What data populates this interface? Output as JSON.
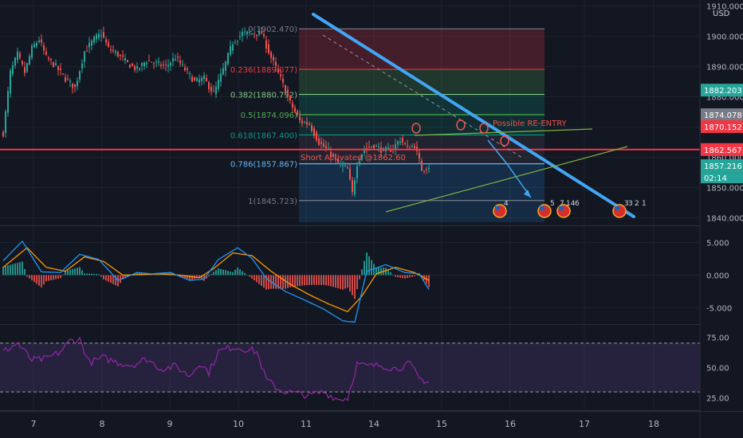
{
  "chart_data": [
    {
      "type": "candlestick",
      "name": "price",
      "currency": "USD",
      "ylim": [
        1837.5,
        1912
      ],
      "y_ticks": [
        1840,
        1850,
        1860,
        1870,
        1880,
        1890,
        1900,
        1910
      ],
      "y_tick_labels": [
        "1840.000",
        "1850.000",
        "1860.000",
        "1870.000",
        "1880.000",
        "1890.000",
        "1900.000",
        "1910.000"
      ],
      "x_tick_labels": [
        "7",
        "8",
        "9",
        "10",
        "11",
        "14",
        "15",
        "16",
        "17",
        "18"
      ],
      "ohlc_keypoints": [
        {
          "i": 0,
          "v": 1868
        },
        {
          "i": 3,
          "v": 1888
        },
        {
          "i": 6,
          "v": 1894
        },
        {
          "i": 9,
          "v": 1888
        },
        {
          "i": 12,
          "v": 1896
        },
        {
          "i": 15,
          "v": 1899
        },
        {
          "i": 18,
          "v": 1893
        },
        {
          "i": 22,
          "v": 1890
        },
        {
          "i": 26,
          "v": 1886
        },
        {
          "i": 30,
          "v": 1883
        },
        {
          "i": 34,
          "v": 1895
        },
        {
          "i": 38,
          "v": 1899
        },
        {
          "i": 41,
          "v": 1901
        },
        {
          "i": 44,
          "v": 1896
        },
        {
          "i": 48,
          "v": 1894
        },
        {
          "i": 52,
          "v": 1891
        },
        {
          "i": 56,
          "v": 1889
        },
        {
          "i": 60,
          "v": 1892
        },
        {
          "i": 64,
          "v": 1891
        },
        {
          "i": 68,
          "v": 1890
        },
        {
          "i": 72,
          "v": 1893
        },
        {
          "i": 76,
          "v": 1889
        },
        {
          "i": 80,
          "v": 1885
        },
        {
          "i": 84,
          "v": 1886
        },
        {
          "i": 88,
          "v": 1881
        },
        {
          "i": 92,
          "v": 1889
        },
        {
          "i": 96,
          "v": 1898
        },
        {
          "i": 100,
          "v": 1901
        },
        {
          "i": 104,
          "v": 1901
        },
        {
          "i": 108,
          "v": 1901
        },
        {
          "i": 112,
          "v": 1893
        },
        {
          "i": 116,
          "v": 1886
        },
        {
          "i": 120,
          "v": 1878
        },
        {
          "i": 124,
          "v": 1872
        },
        {
          "i": 128,
          "v": 1871
        },
        {
          "i": 132,
          "v": 1865
        },
        {
          "i": 136,
          "v": 1862
        },
        {
          "i": 140,
          "v": 1858
        },
        {
          "i": 144,
          "v": 1856
        },
        {
          "i": 146,
          "v": 1848
        },
        {
          "i": 148,
          "v": 1858
        },
        {
          "i": 151,
          "v": 1863
        },
        {
          "i": 155,
          "v": 1864
        },
        {
          "i": 159,
          "v": 1862
        },
        {
          "i": 163,
          "v": 1863
        },
        {
          "i": 166,
          "v": 1866
        },
        {
          "i": 169,
          "v": 1863
        },
        {
          "i": 172,
          "v": 1864
        },
        {
          "i": 175,
          "v": 1856
        },
        {
          "i": 178,
          "v": 1857
        }
      ],
      "current_price": "1857.216",
      "countdown": "02:14",
      "price_labels": [
        {
          "text": "1882.203",
          "value": 1882.203,
          "color": "#26a69a"
        },
        {
          "text": "1874.078",
          "value": 1874.078,
          "color": "#787b86"
        },
        {
          "text": "1870.152",
          "value": 1870.152,
          "color": "#f23645"
        },
        {
          "text": "1862.567",
          "value": 1862.567,
          "color": "#f23645"
        },
        {
          "text": "1857.216",
          "value": 1857.216,
          "color": "#26a69a"
        }
      ],
      "fibonacci": [
        {
          "level": "0",
          "price": 1902.47,
          "label": "0(1902.470)",
          "color": "#787b86"
        },
        {
          "level": "0.236",
          "price": 1889.077,
          "label": "0.236(1889.077)",
          "color": "#f23645"
        },
        {
          "level": "0.382",
          "price": 1880.792,
          "label": "0.382(1880.792)",
          "color": "#81c784"
        },
        {
          "level": "0.5",
          "price": 1874.096,
          "label": "0.5(1874.096)",
          "color": "#4caf50"
        },
        {
          "level": "0.618",
          "price": 1867.4,
          "label": "0.618(1867.400)",
          "color": "#089981"
        },
        {
          "level": "0.786",
          "price": 1857.867,
          "label": "0.786(1857.867)",
          "color": "#64b5f6"
        },
        {
          "level": "1",
          "price": 1845.723,
          "label": "1(1845.723)",
          "color": "#787b86"
        }
      ],
      "annotations": {
        "short_activated": "Short Activated @1862.60",
        "reentry": "Possible RE-ENTRY"
      },
      "event_badges": [
        "4",
        "5",
        "7",
        "14",
        "6",
        "3",
        "3",
        "2",
        "1"
      ],
      "colors": {
        "up": "#26a69a",
        "down": "#ef5350",
        "trendline": "#2196f3",
        "horizontal": "#f23645"
      }
    },
    {
      "type": "line",
      "name": "macd",
      "ylim": [
        -7.5,
        7.5
      ],
      "y_ticks": [
        5,
        0,
        -5
      ],
      "y_tick_labels": [
        "5.000",
        "0.000",
        "-5.000"
      ],
      "macd_keypoints": [
        {
          "i": 0,
          "v": 2.2
        },
        {
          "i": 8,
          "v": 5.2
        },
        {
          "i": 16,
          "v": 0.5
        },
        {
          "i": 24,
          "v": 0.4
        },
        {
          "i": 32,
          "v": 3.2
        },
        {
          "i": 40,
          "v": 2.4
        },
        {
          "i": 48,
          "v": -0.8
        },
        {
          "i": 56,
          "v": 0.4
        },
        {
          "i": 62,
          "v": 0.2
        },
        {
          "i": 70,
          "v": 0.4
        },
        {
          "i": 78,
          "v": -0.8
        },
        {
          "i": 84,
          "v": -0.6
        },
        {
          "i": 90,
          "v": 2.4
        },
        {
          "i": 98,
          "v": 4.2
        },
        {
          "i": 104,
          "v": 2.6
        },
        {
          "i": 110,
          "v": -0.5
        },
        {
          "i": 118,
          "v": -2.5
        },
        {
          "i": 126,
          "v": -3.8
        },
        {
          "i": 134,
          "v": -5.2
        },
        {
          "i": 142,
          "v": -7.0
        },
        {
          "i": 147,
          "v": -7.2
        },
        {
          "i": 152,
          "v": 0.6
        },
        {
          "i": 160,
          "v": 1.6
        },
        {
          "i": 168,
          "v": 0.4
        },
        {
          "i": 174,
          "v": 0.2
        },
        {
          "i": 178,
          "v": -2.2
        }
      ],
      "signal_keypoints": [
        {
          "i": 0,
          "v": 1.2
        },
        {
          "i": 10,
          "v": 4.2
        },
        {
          "i": 18,
          "v": 1.2
        },
        {
          "i": 26,
          "v": 0.6
        },
        {
          "i": 34,
          "v": 2.8
        },
        {
          "i": 42,
          "v": 2.1
        },
        {
          "i": 50,
          "v": 0.0
        },
        {
          "i": 58,
          "v": 0.1
        },
        {
          "i": 66,
          "v": 0.2
        },
        {
          "i": 74,
          "v": 0.0
        },
        {
          "i": 82,
          "v": -0.4
        },
        {
          "i": 88,
          "v": 1.0
        },
        {
          "i": 96,
          "v": 3.4
        },
        {
          "i": 104,
          "v": 3.0
        },
        {
          "i": 112,
          "v": 0.6
        },
        {
          "i": 120,
          "v": -1.4
        },
        {
          "i": 128,
          "v": -3.0
        },
        {
          "i": 136,
          "v": -4.4
        },
        {
          "i": 144,
          "v": -5.6
        },
        {
          "i": 150,
          "v": -3.2
        },
        {
          "i": 156,
          "v": 0.2
        },
        {
          "i": 164,
          "v": 1.2
        },
        {
          "i": 172,
          "v": 0.4
        },
        {
          "i": 178,
          "v": -0.8
        }
      ],
      "colors": {
        "macd": "#2196f3",
        "signal": "#ff9800",
        "hist_up": "#26a69a",
        "hist_down": "#ef5350"
      }
    },
    {
      "type": "line",
      "name": "rsi",
      "ylim": [
        15,
        85
      ],
      "y_ticks": [
        75,
        50,
        25
      ],
      "y_tick_labels": [
        "75.00",
        "50.00",
        "25.00"
      ],
      "band": [
        30,
        70
      ],
      "rsi_keypoints": [
        {
          "i": 0,
          "v": 63
        },
        {
          "i": 6,
          "v": 70
        },
        {
          "i": 12,
          "v": 56
        },
        {
          "i": 18,
          "v": 57
        },
        {
          "i": 24,
          "v": 63
        },
        {
          "i": 28,
          "v": 72
        },
        {
          "i": 32,
          "v": 73
        },
        {
          "i": 36,
          "v": 54
        },
        {
          "i": 42,
          "v": 58
        },
        {
          "i": 48,
          "v": 54
        },
        {
          "i": 54,
          "v": 52
        },
        {
          "i": 60,
          "v": 57
        },
        {
          "i": 66,
          "v": 49
        },
        {
          "i": 72,
          "v": 51
        },
        {
          "i": 78,
          "v": 43
        },
        {
          "i": 82,
          "v": 54
        },
        {
          "i": 86,
          "v": 46
        },
        {
          "i": 90,
          "v": 63
        },
        {
          "i": 96,
          "v": 67
        },
        {
          "i": 102,
          "v": 65
        },
        {
          "i": 106,
          "v": 63
        },
        {
          "i": 110,
          "v": 40
        },
        {
          "i": 116,
          "v": 31
        },
        {
          "i": 122,
          "v": 29
        },
        {
          "i": 128,
          "v": 27
        },
        {
          "i": 134,
          "v": 30
        },
        {
          "i": 140,
          "v": 24
        },
        {
          "i": 144,
          "v": 25
        },
        {
          "i": 148,
          "v": 53
        },
        {
          "i": 152,
          "v": 51
        },
        {
          "i": 158,
          "v": 52
        },
        {
          "i": 164,
          "v": 49
        },
        {
          "i": 170,
          "v": 53
        },
        {
          "i": 174,
          "v": 41
        },
        {
          "i": 178,
          "v": 38
        }
      ],
      "colors": {
        "line": "#9c27b0",
        "band": "rgba(126,87,194,0.18)"
      }
    }
  ]
}
